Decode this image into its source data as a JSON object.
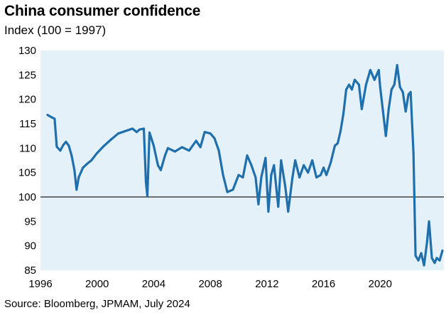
{
  "chart_data": {
    "type": "line",
    "title": "China consumer confidence",
    "subtitle": "Index (100 = 1997)",
    "source": "Source: Bloomberg, JPMAM, July 2024",
    "xlabel": "",
    "ylabel": "",
    "xlim": [
      1996,
      2024.5
    ],
    "ylim": [
      85,
      130
    ],
    "reference_line": 100,
    "x_ticks": [
      1996,
      2000,
      2004,
      2008,
      2012,
      2016,
      2020
    ],
    "y_ticks": [
      85,
      90,
      95,
      100,
      105,
      110,
      115,
      120,
      125,
      130
    ],
    "grid": false,
    "legend": "none",
    "colors": {
      "line": "#1f6fad",
      "plot_bg": "#e4f1f8",
      "ref_line": "#222222"
    },
    "series": [
      {
        "values": [
          [
            1996.5,
            116.8
          ],
          [
            1996.8,
            116.3
          ],
          [
            1997.0,
            116.0
          ],
          [
            1997.15,
            110.3
          ],
          [
            1997.4,
            109.5
          ],
          [
            1997.6,
            110.6
          ],
          [
            1997.8,
            111.3
          ],
          [
            1998.0,
            110.5
          ],
          [
            1998.2,
            108.5
          ],
          [
            1998.4,
            105.5
          ],
          [
            1998.55,
            101.5
          ],
          [
            1998.7,
            104.0
          ],
          [
            1999.0,
            106.0
          ],
          [
            1999.3,
            106.8
          ],
          [
            1999.6,
            107.5
          ],
          [
            2000.0,
            109.0
          ],
          [
            2000.5,
            110.5
          ],
          [
            2001.0,
            111.8
          ],
          [
            2001.5,
            113.0
          ],
          [
            2002.0,
            113.5
          ],
          [
            2002.5,
            114.0
          ],
          [
            2002.8,
            113.3
          ],
          [
            2003.0,
            113.8
          ],
          [
            2003.3,
            114.0
          ],
          [
            2003.45,
            103.0
          ],
          [
            2003.55,
            100.2
          ],
          [
            2003.7,
            113.2
          ],
          [
            2004.0,
            110.5
          ],
          [
            2004.3,
            106.5
          ],
          [
            2004.5,
            105.5
          ],
          [
            2004.8,
            108.5
          ],
          [
            2005.0,
            110.0
          ],
          [
            2005.5,
            109.3
          ],
          [
            2006.0,
            110.2
          ],
          [
            2006.5,
            109.5
          ],
          [
            2007.0,
            111.5
          ],
          [
            2007.3,
            110.2
          ],
          [
            2007.6,
            113.3
          ],
          [
            2008.0,
            113.0
          ],
          [
            2008.3,
            112.0
          ],
          [
            2008.6,
            109.5
          ],
          [
            2008.9,
            104.5
          ],
          [
            2009.2,
            101.0
          ],
          [
            2009.6,
            101.5
          ],
          [
            2010.0,
            104.5
          ],
          [
            2010.3,
            104.0
          ],
          [
            2010.6,
            108.5
          ],
          [
            2010.9,
            106.5
          ],
          [
            2011.2,
            104.0
          ],
          [
            2011.4,
            98.5
          ],
          [
            2011.6,
            104.0
          ],
          [
            2011.9,
            108.0
          ],
          [
            2012.1,
            97.0
          ],
          [
            2012.3,
            104.5
          ],
          [
            2012.5,
            106.5
          ],
          [
            2012.8,
            98.0
          ],
          [
            2013.0,
            107.5
          ],
          [
            2013.3,
            102.0
          ],
          [
            2013.5,
            97.0
          ],
          [
            2013.8,
            104.0
          ],
          [
            2014.0,
            107.5
          ],
          [
            2014.3,
            104.0
          ],
          [
            2014.6,
            106.5
          ],
          [
            2014.9,
            105.0
          ],
          [
            2015.2,
            107.5
          ],
          [
            2015.5,
            104.0
          ],
          [
            2015.8,
            104.5
          ],
          [
            2016.0,
            106.0
          ],
          [
            2016.2,
            104.5
          ],
          [
            2016.5,
            107.0
          ],
          [
            2016.8,
            110.5
          ],
          [
            2017.0,
            111.0
          ],
          [
            2017.2,
            113.5
          ],
          [
            2017.4,
            117.0
          ],
          [
            2017.6,
            122.0
          ],
          [
            2017.8,
            123.0
          ],
          [
            2018.0,
            122.0
          ],
          [
            2018.2,
            124.0
          ],
          [
            2018.5,
            123.0
          ],
          [
            2018.7,
            118.0
          ],
          [
            2019.0,
            123.0
          ],
          [
            2019.3,
            126.0
          ],
          [
            2019.6,
            124.0
          ],
          [
            2019.9,
            126.0
          ],
          [
            2020.0,
            122.5
          ],
          [
            2020.2,
            117.5
          ],
          [
            2020.4,
            112.5
          ],
          [
            2020.6,
            118.0
          ],
          [
            2020.8,
            122.0
          ],
          [
            2021.0,
            123.0
          ],
          [
            2021.2,
            127.0
          ],
          [
            2021.4,
            122.5
          ],
          [
            2021.6,
            121.5
          ],
          [
            2021.8,
            117.5
          ],
          [
            2022.0,
            121.0
          ],
          [
            2022.15,
            121.5
          ],
          [
            2022.35,
            109.0
          ],
          [
            2022.5,
            88.0
          ],
          [
            2022.7,
            87.0
          ],
          [
            2022.9,
            88.5
          ],
          [
            2023.1,
            86.0
          ],
          [
            2023.3,
            90.5
          ],
          [
            2023.45,
            95.0
          ],
          [
            2023.65,
            87.5
          ],
          [
            2023.85,
            86.5
          ],
          [
            2024.0,
            87.5
          ],
          [
            2024.2,
            87.0
          ],
          [
            2024.4,
            89.0
          ]
        ]
      }
    ]
  }
}
